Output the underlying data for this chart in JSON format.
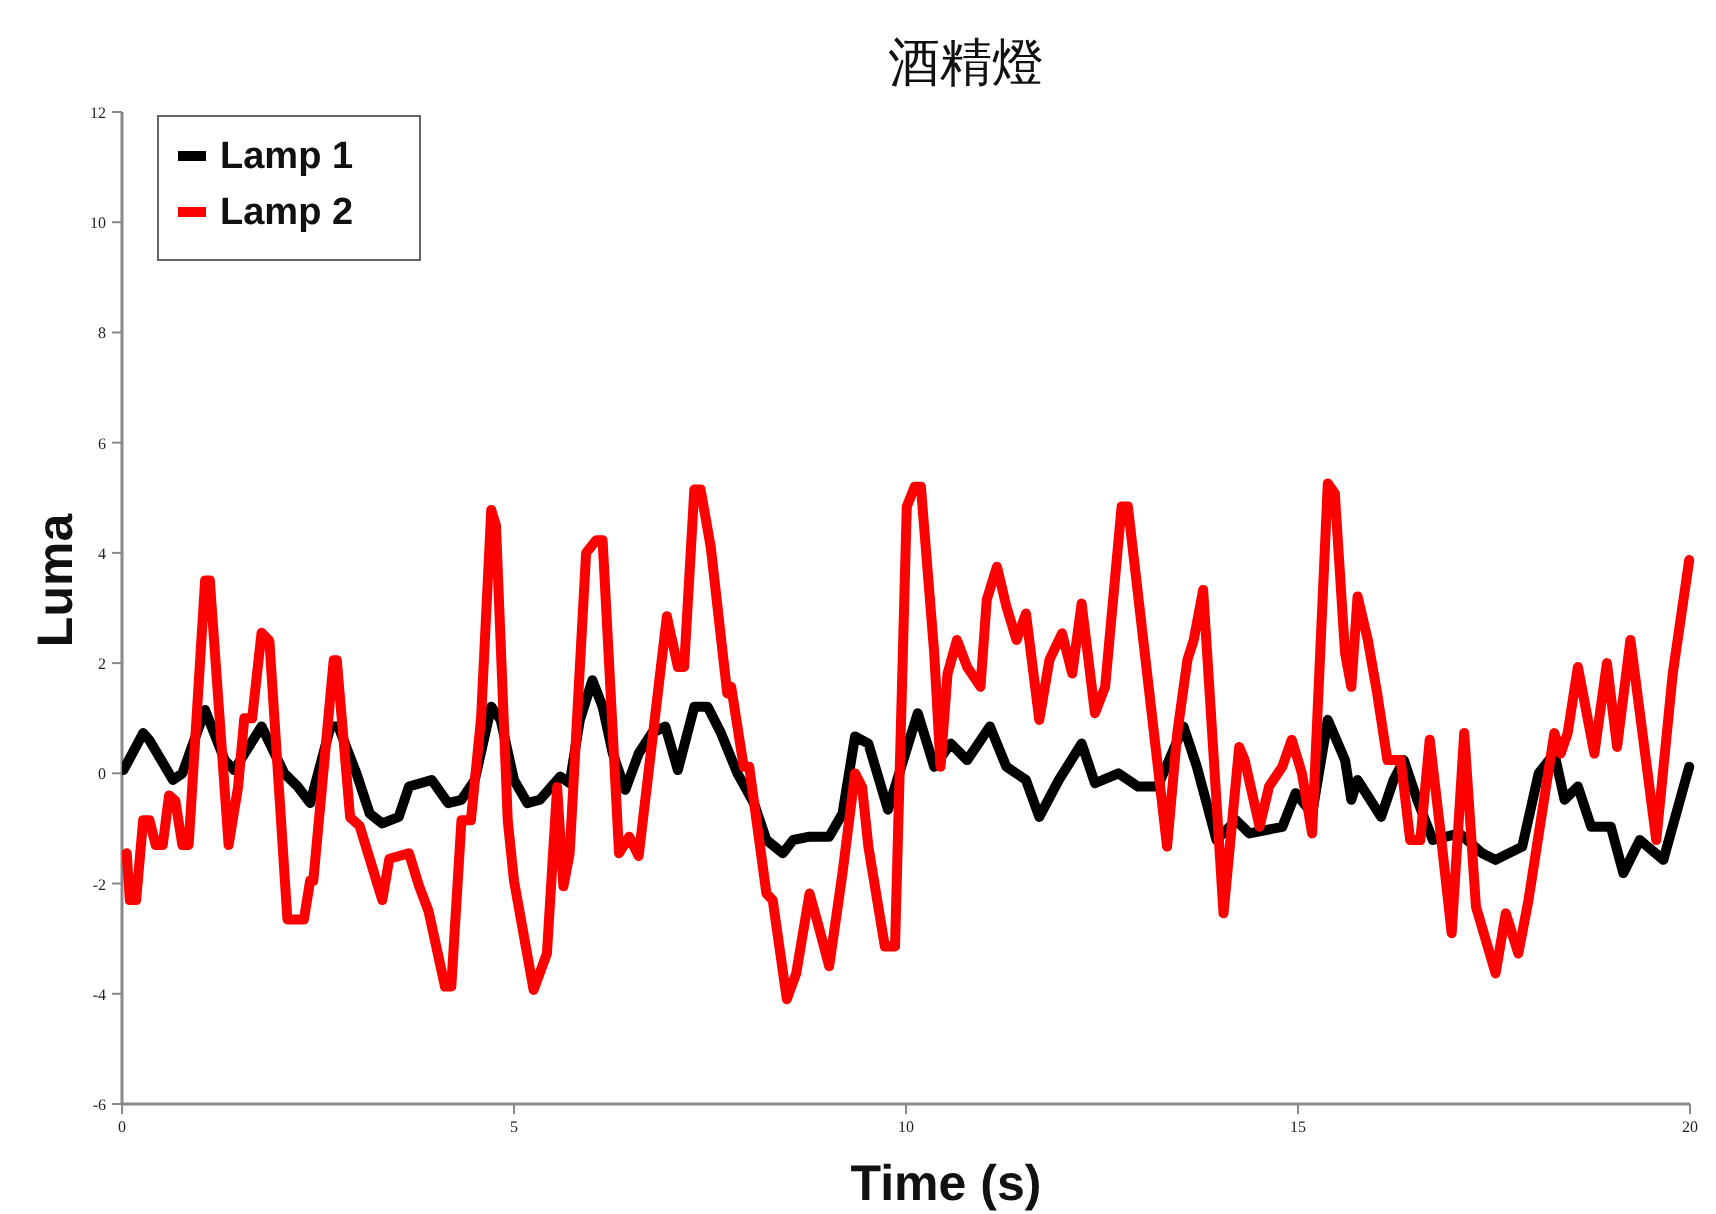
{
  "chart_data": {
    "type": "line",
    "title": "酒精燈",
    "xlabel": "Time (s)",
    "ylabel": "Luma",
    "xlim": [
      0,
      20
    ],
    "ylim": [
      -6,
      12
    ],
    "xticks": [
      0,
      5,
      10,
      15,
      20
    ],
    "yticks": [
      -6,
      -4,
      -2,
      0,
      2,
      4,
      6,
      8,
      10,
      12
    ],
    "legend": "top left",
    "grid": false,
    "line_style": "solid",
    "marker": "none",
    "series": [
      {
        "name": "Lamp 1",
        "color": "#000000",
        "x": [
          0.02,
          0.27,
          0.35,
          0.65,
          0.77,
          1.06,
          1.31,
          1.43,
          1.78,
          2.07,
          2.24,
          2.4,
          2.66,
          2.76,
          2.99,
          3.16,
          3.32,
          3.53,
          3.66,
          3.95,
          4.16,
          4.33,
          4.5,
          4.71,
          4.83,
          5.0,
          5.17,
          5.33,
          5.59,
          5.71,
          5.84,
          6.0,
          6.13,
          6.26,
          6.42,
          6.59,
          6.76,
          6.93,
          7.09,
          7.3,
          7.47,
          7.64,
          7.85,
          8.06,
          8.22,
          8.43,
          8.56,
          8.77,
          9.02,
          9.19,
          9.35,
          9.52,
          9.77,
          10.15,
          10.36,
          10.57,
          10.78,
          11.07,
          11.28,
          11.53,
          11.7,
          11.95,
          12.24,
          12.41,
          12.71,
          12.96,
          13.21,
          13.54,
          13.71,
          13.96,
          14.21,
          14.38,
          14.8,
          14.97,
          15.18,
          15.38,
          15.6,
          15.68,
          15.76,
          16.06,
          16.22,
          16.35,
          16.52,
          16.72,
          17.06,
          17.35,
          17.52,
          17.86,
          18.07,
          18.27,
          18.4,
          18.57,
          18.74,
          18.99,
          19.15,
          19.36,
          19.66,
          19.99
        ],
        "values": [
          0.06,
          0.73,
          0.6,
          -0.12,
          0,
          1.15,
          0.24,
          0.06,
          0.85,
          0,
          -0.24,
          -0.54,
          0.85,
          0.85,
          0,
          -0.73,
          -0.91,
          -0.79,
          -0.24,
          -0.12,
          -0.54,
          -0.48,
          -0.12,
          1.21,
          0.97,
          -0.12,
          -0.54,
          -0.48,
          -0.06,
          -0.18,
          0.97,
          1.69,
          1.21,
          0.36,
          -0.3,
          0.36,
          0.73,
          0.85,
          0.06,
          1.21,
          1.21,
          0.73,
          0,
          -0.54,
          -1.21,
          -1.45,
          -1.21,
          -1.15,
          -1.15,
          -0.73,
          0.67,
          0.54,
          -0.66,
          1.09,
          0.12,
          0.54,
          0.24,
          0.85,
          0.12,
          -0.12,
          -0.79,
          -0.12,
          0.54,
          -0.18,
          0,
          -0.24,
          -0.24,
          0.85,
          0.12,
          -1.21,
          -0.85,
          -1.09,
          -0.97,
          -0.36,
          -0.73,
          0.97,
          0.24,
          -0.48,
          -0.12,
          -0.79,
          -0.12,
          0.24,
          -0.48,
          -1.21,
          -1.09,
          -1.45,
          -1.57,
          -1.33,
          0,
          0.36,
          -0.48,
          -0.24,
          -0.97,
          -0.97,
          -1.81,
          -1.21,
          -1.57,
          0.12
        ]
      },
      {
        "name": "Lamp 2",
        "color": "#ff0000",
        "x": [
          0.06,
          0.1,
          0.18,
          0.27,
          0.35,
          0.43,
          0.52,
          0.6,
          0.68,
          0.77,
          0.85,
          1.06,
          1.12,
          1.36,
          1.48,
          1.56,
          1.66,
          1.78,
          1.88,
          2.11,
          2.32,
          2.4,
          2.44,
          2.7,
          2.74,
          2.91,
          3.03,
          3.32,
          3.41,
          3.66,
          3.79,
          3.91,
          4.12,
          4.2,
          4.33,
          4.45,
          4.58,
          4.71,
          4.77,
          4.92,
          5.0,
          5.25,
          5.42,
          5.55,
          5.63,
          5.71,
          5.92,
          6.05,
          6.13,
          6.34,
          6.47,
          6.59,
          6.95,
          7.09,
          7.17,
          7.3,
          7.38,
          7.51,
          7.72,
          7.77,
          7.93,
          8.0,
          8.22,
          8.3,
          8.48,
          8.6,
          8.77,
          8.89,
          9.02,
          9.19,
          9.35,
          9.44,
          9.52,
          9.73,
          9.86,
          10.01,
          10.11,
          10.19,
          10.36,
          10.44,
          10.53,
          10.65,
          10.78,
          10.95,
          11.03,
          11.16,
          11.28,
          11.41,
          11.53,
          11.7,
          11.83,
          11.99,
          12.12,
          12.24,
          12.41,
          12.54,
          12.75,
          12.83,
          13.33,
          13.46,
          13.59,
          13.67,
          13.79,
          14.05,
          14.25,
          14.32,
          14.51,
          14.63,
          14.8,
          14.92,
          15.05,
          15.18,
          15.38,
          15.47,
          15.6,
          15.68,
          15.76,
          15.89,
          16.01,
          16.14,
          16.31,
          16.43,
          16.56,
          16.68,
          16.81,
          16.96,
          17.12,
          17.27,
          17.52,
          17.65,
          17.81,
          17.94,
          18.27,
          18.35,
          18.44,
          18.57,
          18.78,
          18.94,
          19.07,
          19.24,
          19.57,
          19.78,
          19.99
        ],
        "values": [
          -1.45,
          -2.3,
          -2.3,
          -0.85,
          -0.85,
          -1.3,
          -1.3,
          -0.4,
          -0.5,
          -1.3,
          -1.3,
          3.5,
          3.5,
          -1.3,
          -0.25,
          1,
          1,
          2.55,
          2.4,
          -2.65,
          -2.65,
          -1.95,
          -1.95,
          2.05,
          2.05,
          -0.8,
          -0.95,
          -2.3,
          -1.55,
          -1.45,
          -2.05,
          -2.5,
          -3.87,
          -3.87,
          -0.85,
          -0.85,
          1,
          4.78,
          4.5,
          -0.85,
          -1.95,
          -3.93,
          -3.27,
          -0.25,
          -2.05,
          -1.45,
          4,
          4.23,
          4.23,
          -1.45,
          -1.15,
          -1.5,
          2.85,
          1.93,
          1.93,
          5.15,
          5.15,
          4.1,
          1.45,
          1.57,
          0.12,
          0.12,
          -2.18,
          -2.3,
          -4.1,
          -3.63,
          -2.18,
          -2.8,
          -3.5,
          -1.81,
          0,
          -0.25,
          -1.33,
          -3.14,
          -3.14,
          4.84,
          5.2,
          5.2,
          2.18,
          0.12,
          1.81,
          2.42,
          1.93,
          1.57,
          3.15,
          3.75,
          3.03,
          2.42,
          2.9,
          0.97,
          2.06,
          2.54,
          1.81,
          3.08,
          1.09,
          1.57,
          4.84,
          4.84,
          -1.33,
          0.73,
          2.06,
          2.42,
          3.33,
          -2.54,
          0.48,
          0.24,
          -0.97,
          -0.24,
          0.12,
          0.61,
          0,
          -1.09,
          5.26,
          5.08,
          2.18,
          1.57,
          3.21,
          2.42,
          1.45,
          0.24,
          0.24,
          -1.21,
          -1.21,
          0.61,
          -0.97,
          -2.9,
          0.73,
          -2.42,
          -3.63,
          -2.54,
          -3.27,
          -2.3,
          0.73,
          0.36,
          0.73,
          1.93,
          0.36,
          2,
          0.48,
          2.42,
          -1.21,
          1.81,
          3.87
        ]
      }
    ]
  }
}
